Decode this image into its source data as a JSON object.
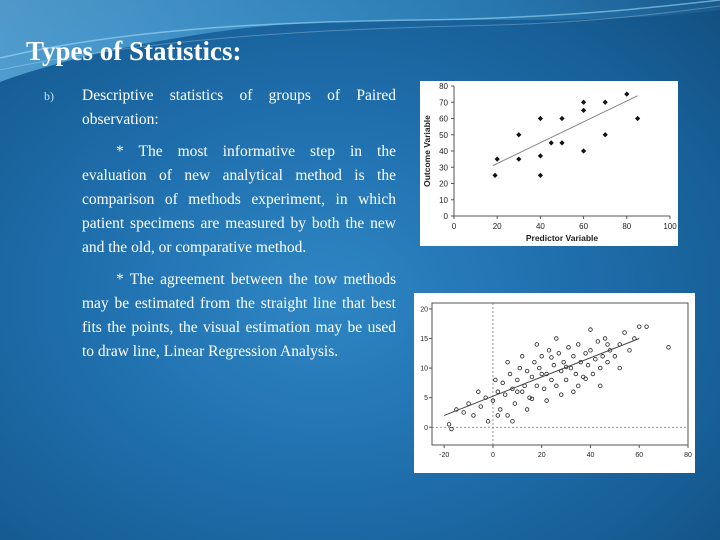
{
  "slide": {
    "title": "Types of Statistics:",
    "bullet": {
      "marker": "b)",
      "heading": "Descriptive statistics of groups of Paired observation:",
      "paragraphs": [
        "* The most informative step in the evaluation of new analytical method is the comparison of methods experiment, in which patient specimens are measured by both the new and the old, or comparative method.",
        "* The agreement between the tow methods may be estimated from the straight line that best fits the points, the visual estimation may be used to draw line, Linear Regression Analysis."
      ]
    }
  },
  "colors": {
    "background": "#1f6eac",
    "title_text": "#ffffff",
    "body_text": "#ffffff",
    "marker": "#bfe4ff",
    "panel": "#ffffff"
  },
  "chart_data": [
    {
      "type": "scatter",
      "title": "",
      "xlabel": "Predictor Variable",
      "ylabel": "Outcome Variable",
      "xlim": [
        0,
        100
      ],
      "ylim": [
        0,
        80
      ],
      "xticks": [
        "0",
        "20",
        "40",
        "60",
        "80",
        "100"
      ],
      "yticks": [
        "0",
        "10",
        "20",
        "30",
        "40",
        "50",
        "60",
        "70",
        "80"
      ],
      "marker": "diamond",
      "points": [
        {
          "x": 19,
          "y": 25
        },
        {
          "x": 20,
          "y": 35
        },
        {
          "x": 30,
          "y": 35
        },
        {
          "x": 30,
          "y": 50
        },
        {
          "x": 40,
          "y": 25
        },
        {
          "x": 40,
          "y": 37
        },
        {
          "x": 40,
          "y": 60
        },
        {
          "x": 45,
          "y": 45
        },
        {
          "x": 50,
          "y": 45
        },
        {
          "x": 50,
          "y": 60
        },
        {
          "x": 60,
          "y": 40
        },
        {
          "x": 60,
          "y": 65
        },
        {
          "x": 60,
          "y": 70
        },
        {
          "x": 70,
          "y": 50
        },
        {
          "x": 70,
          "y": 70
        },
        {
          "x": 80,
          "y": 75
        },
        {
          "x": 85,
          "y": 60
        }
      ],
      "fit_line": {
        "x": [
          18,
          85
        ],
        "y": [
          31,
          74
        ]
      },
      "grid": false
    },
    {
      "type": "scatter",
      "title": "",
      "xlabel": "",
      "ylabel": "",
      "xlim": [
        -25,
        80
      ],
      "ylim": [
        -3,
        21
      ],
      "xticks": [
        "-20",
        "0",
        "20",
        "40",
        "60",
        "80"
      ],
      "yticks": [
        "0",
        "5",
        "10",
        "15",
        "20"
      ],
      "marker": "circle",
      "reference_lines": {
        "x": 0,
        "y": 0
      },
      "fit_line": {
        "x": [
          -20,
          60
        ],
        "y": [
          2,
          15
        ]
      },
      "points": [
        {
          "x": -18,
          "y": 0.5
        },
        {
          "x": -17,
          "y": -0.3
        },
        {
          "x": -15,
          "y": 3
        },
        {
          "x": -12,
          "y": 2.5
        },
        {
          "x": -10,
          "y": 4
        },
        {
          "x": -8,
          "y": 2
        },
        {
          "x": -6,
          "y": 6
        },
        {
          "x": -5,
          "y": 3.5
        },
        {
          "x": -3,
          "y": 5
        },
        {
          "x": -2,
          "y": 1
        },
        {
          "x": 0,
          "y": 4.5
        },
        {
          "x": 1,
          "y": 8
        },
        {
          "x": 2,
          "y": 6
        },
        {
          "x": 3,
          "y": 3
        },
        {
          "x": 4,
          "y": 7.5
        },
        {
          "x": 5,
          "y": 5.5
        },
        {
          "x": 6,
          "y": 2
        },
        {
          "x": 7,
          "y": 9
        },
        {
          "x": 8,
          "y": 6.5
        },
        {
          "x": 9,
          "y": 4
        },
        {
          "x": 10,
          "y": 8
        },
        {
          "x": 11,
          "y": 10
        },
        {
          "x": 12,
          "y": 6
        },
        {
          "x": 13,
          "y": 7
        },
        {
          "x": 14,
          "y": 9.5
        },
        {
          "x": 15,
          "y": 5
        },
        {
          "x": 16,
          "y": 8.5
        },
        {
          "x": 17,
          "y": 11
        },
        {
          "x": 18,
          "y": 7
        },
        {
          "x": 19,
          "y": 10
        },
        {
          "x": 20,
          "y": 12
        },
        {
          "x": 21,
          "y": 6.5
        },
        {
          "x": 22,
          "y": 9
        },
        {
          "x": 23,
          "y": 13
        },
        {
          "x": 24,
          "y": 8
        },
        {
          "x": 25,
          "y": 10.5
        },
        {
          "x": 26,
          "y": 7
        },
        {
          "x": 27,
          "y": 12.5
        },
        {
          "x": 28,
          "y": 9.5
        },
        {
          "x": 29,
          "y": 11
        },
        {
          "x": 30,
          "y": 8
        },
        {
          "x": 31,
          "y": 13.5
        },
        {
          "x": 32,
          "y": 10
        },
        {
          "x": 33,
          "y": 12
        },
        {
          "x": 34,
          "y": 9
        },
        {
          "x": 35,
          "y": 14
        },
        {
          "x": 36,
          "y": 11
        },
        {
          "x": 37,
          "y": 8.5
        },
        {
          "x": 38,
          "y": 12.5
        },
        {
          "x": 39,
          "y": 10.5
        },
        {
          "x": 40,
          "y": 13
        },
        {
          "x": 41,
          "y": 9
        },
        {
          "x": 42,
          "y": 11.5
        },
        {
          "x": 43,
          "y": 14.5
        },
        {
          "x": 44,
          "y": 10
        },
        {
          "x": 45,
          "y": 12
        },
        {
          "x": 46,
          "y": 15
        },
        {
          "x": 47,
          "y": 11
        },
        {
          "x": 48,
          "y": 13
        },
        {
          "x": 50,
          "y": 12
        },
        {
          "x": 52,
          "y": 14
        },
        {
          "x": 54,
          "y": 16
        },
        {
          "x": 56,
          "y": 13
        },
        {
          "x": 58,
          "y": 15
        },
        {
          "x": 60,
          "y": 17
        },
        {
          "x": 63,
          "y": 17
        },
        {
          "x": 72,
          "y": 13.5
        },
        {
          "x": 14,
          "y": 3
        },
        {
          "x": 22,
          "y": 4.5
        },
        {
          "x": 28,
          "y": 5.5
        },
        {
          "x": 35,
          "y": 7
        },
        {
          "x": 6,
          "y": 11
        },
        {
          "x": 12,
          "y": 12
        },
        {
          "x": 18,
          "y": 14
        },
        {
          "x": 26,
          "y": 15
        },
        {
          "x": 40,
          "y": 16.5
        },
        {
          "x": 44,
          "y": 7
        },
        {
          "x": 52,
          "y": 10
        },
        {
          "x": 8,
          "y": 1
        },
        {
          "x": 2,
          "y": 2
        },
        {
          "x": 33,
          "y": 6
        },
        {
          "x": 16,
          "y": 4.8
        },
        {
          "x": 24,
          "y": 11.8
        },
        {
          "x": 30,
          "y": 10.2
        },
        {
          "x": 38,
          "y": 8.2
        },
        {
          "x": 47,
          "y": 14
        },
        {
          "x": 20,
          "y": 9
        },
        {
          "x": 10,
          "y": 6
        }
      ],
      "grid": false
    }
  ]
}
